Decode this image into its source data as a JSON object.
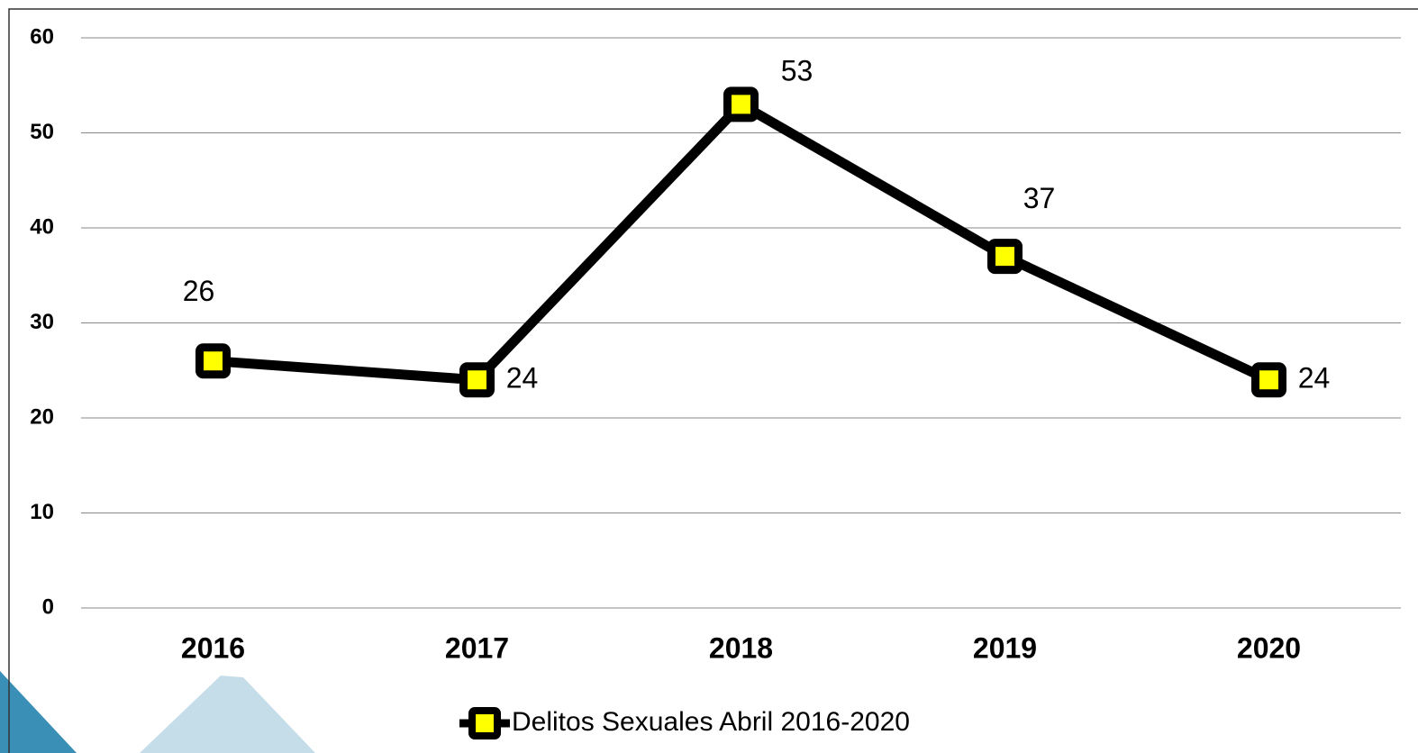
{
  "chart_data": {
    "type": "line",
    "categories": [
      "2016",
      "2017",
      "2018",
      "2019",
      "2020"
    ],
    "series": [
      {
        "name": "Delitos Sexuales Abril 2016-2020",
        "color": "#000000",
        "marker_color": "#ffff00",
        "values": [
          26,
          24,
          53,
          37,
          24
        ]
      }
    ],
    "ylim": [
      0,
      60
    ],
    "yticks": [
      0,
      10,
      20,
      30,
      40,
      50,
      60
    ],
    "grid": true,
    "legend": "bottom"
  }
}
